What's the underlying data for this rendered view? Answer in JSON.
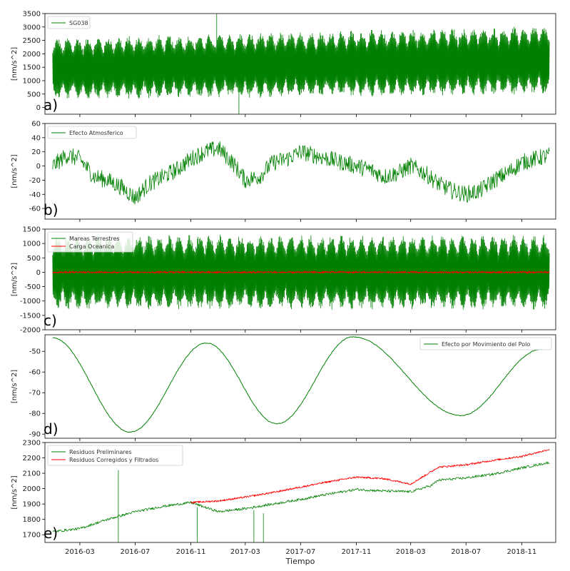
{
  "chart_data": [
    {
      "type": "line",
      "panel_label": "a)",
      "ylabel": "[nm/s^2]",
      "ylim": [
        -250,
        3500
      ],
      "yticks": [
        0,
        500,
        1000,
        1500,
        2000,
        2500,
        3000,
        3500
      ],
      "legend_position": "top-left",
      "series": [
        {
          "name": "SG038",
          "color": "#008000",
          "kind": "oscillation",
          "base_start": 1450,
          "base_end": 1750,
          "amp_start": 1150,
          "amp_end": 1300
        }
      ],
      "spikes": [
        {
          "x": "2016-12-28",
          "y_low": 800,
          "y_high": 3500
        },
        {
          "x": "2017-02-15",
          "y_low": -250,
          "y_high": 1500
        }
      ]
    },
    {
      "type": "line",
      "panel_label": "b)",
      "ylabel": "[nm/s^2]",
      "ylim": [
        -75,
        60
      ],
      "yticks": [
        -60,
        -40,
        -20,
        0,
        20,
        40,
        60
      ],
      "legend_position": "top-left",
      "series": [
        {
          "name": "Efecto Atmosferico",
          "color": "#008000",
          "kind": "noisy",
          "x": [
            "2016-01-01",
            "2016-02-01",
            "2016-03-01",
            "2016-04-01",
            "2016-05-01",
            "2016-06-01",
            "2016-07-01",
            "2016-08-01",
            "2016-09-01",
            "2016-10-01",
            "2016-11-01",
            "2016-12-01",
            "2017-01-01",
            "2017-02-01",
            "2017-03-01",
            "2017-04-01",
            "2017-05-01",
            "2017-06-01",
            "2017-07-01",
            "2017-08-01",
            "2017-09-01",
            "2017-10-01",
            "2017-11-01",
            "2017-12-01",
            "2018-01-01",
            "2018-02-01",
            "2018-03-01",
            "2018-04-01",
            "2018-05-01",
            "2018-06-01",
            "2018-07-01",
            "2018-08-01",
            "2018-09-01",
            "2018-10-01",
            "2018-11-01",
            "2018-12-01",
            "2019-01-01"
          ],
          "y": [
            0,
            15,
            10,
            -15,
            -20,
            -30,
            -45,
            -25,
            -15,
            -5,
            10,
            20,
            25,
            5,
            -20,
            -15,
            5,
            10,
            20,
            15,
            10,
            5,
            0,
            -5,
            -15,
            -10,
            0,
            -10,
            -25,
            -35,
            -40,
            -35,
            -20,
            -10,
            5,
            10,
            15
          ],
          "noise": 12
        }
      ]
    },
    {
      "type": "line",
      "panel_label": "c)",
      "ylabel": "[nm/s^2]",
      "ylim": [
        -2000,
        1500
      ],
      "yticks": [
        -2000,
        -1500,
        -1000,
        -500,
        0,
        500,
        1000,
        1500
      ],
      "legend_position": "top-left",
      "series": [
        {
          "name": "Mareas Terrestres",
          "color": "#008000",
          "kind": "oscillation",
          "base_start": 0,
          "base_end": 0,
          "amp_start": 1300,
          "amp_end": 1300
        },
        {
          "name": "Carga Oceanica",
          "color": "#ff0000",
          "kind": "flat",
          "value": 0,
          "amp": 40
        }
      ]
    },
    {
      "type": "line",
      "panel_label": "d)",
      "ylabel": "[nm/s^2]",
      "ylim": [
        -92,
        -42
      ],
      "yticks": [
        -90,
        -80,
        -70,
        -60,
        -50
      ],
      "legend_position": "top-right",
      "series": [
        {
          "name": "Efecto por Movimiento del Polo",
          "color": "#008000",
          "kind": "smooth",
          "x": [
            "2016-01-01",
            "2016-06-20",
            "2016-12-05",
            "2017-05-10",
            "2017-10-25",
            "2018-06-20",
            "2018-12-15"
          ],
          "y": [
            -43.5,
            -89,
            -46,
            -85,
            -43,
            -81,
            -49
          ]
        }
      ]
    },
    {
      "type": "line",
      "panel_label": "e)",
      "ylabel": "[nm/s^2]",
      "xlabel": "Tiempo",
      "ylim": [
        1650,
        2300
      ],
      "yticks": [
        1700,
        1800,
        1900,
        2000,
        2100,
        2200,
        2300
      ],
      "xticks": [
        "2016-03",
        "2016-07",
        "2016-11",
        "2017-03",
        "2017-07",
        "2017-11",
        "2018-03",
        "2018-07",
        "2018-11"
      ],
      "legend_position": "top-left",
      "series": [
        {
          "name": "Residuos Preliminares",
          "color": "#008000",
          "kind": "noisy",
          "x": [
            "2016-01-01",
            "2016-03-01",
            "2016-05-01",
            "2016-07-01",
            "2016-09-01",
            "2016-11-01",
            "2017-01-01",
            "2017-03-01",
            "2017-05-01",
            "2017-07-01",
            "2017-09-01",
            "2017-11-01",
            "2018-01-01",
            "2018-03-01",
            "2018-04-15",
            "2018-05-01",
            "2018-07-01",
            "2018-09-01",
            "2018-11-01",
            "2019-01-01"
          ],
          "y": [
            1720,
            1740,
            1800,
            1850,
            1885,
            1910,
            1850,
            1870,
            1900,
            1930,
            1965,
            1995,
            1985,
            1980,
            2020,
            2055,
            2070,
            2095,
            2135,
            2170
          ],
          "noise": 8
        },
        {
          "name": "Residuos Corregidos y Filtrados",
          "color": "#ff0000",
          "kind": "noisy",
          "x": [
            "2016-11-01",
            "2017-01-01",
            "2017-03-01",
            "2017-05-01",
            "2017-07-01",
            "2017-09-01",
            "2017-11-01",
            "2018-01-01",
            "2018-03-01",
            "2018-04-15",
            "2018-05-01",
            "2018-07-01",
            "2018-09-01",
            "2018-11-01",
            "2019-01-01"
          ],
          "y": [
            1910,
            1920,
            1945,
            1975,
            2010,
            2045,
            2075,
            2065,
            2030,
            2110,
            2140,
            2155,
            2185,
            2210,
            2255
          ],
          "noise": 6
        }
      ],
      "spikes": [
        {
          "x": "2016-05-25",
          "y_low": 1650,
          "y_high": 2120
        },
        {
          "x": "2016-11-15",
          "y_low": 1650,
          "y_high": 1880
        },
        {
          "x": "2017-03-20",
          "y_low": 1650,
          "y_high": 1860
        },
        {
          "x": "2017-04-10",
          "y_low": 1650,
          "y_high": 1840
        }
      ]
    }
  ],
  "x_range": [
    "2015-12-15",
    "2019-01-15"
  ],
  "data_range": [
    "2016-01-01",
    "2019-01-01"
  ]
}
